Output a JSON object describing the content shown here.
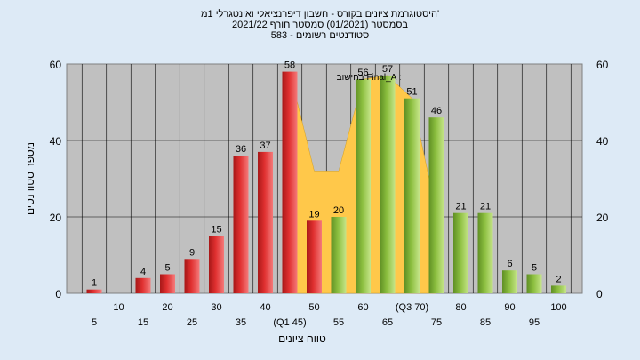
{
  "title_lines": [
    "היסטוגרמת ציונים בקורס - חשבון דיפרנציאלי ואינטגרלי 1מ'",
    "בסמסטר (01/2021) סמסטר חורף 2021/22",
    "583 - סטודנטים רשומים"
  ],
  "colors": {
    "background": "#ddeaf6",
    "plot_bg": "#c0c0c0",
    "red_bar": "#e03030",
    "green_bar": "#8cbf3f",
    "area": "#ffc84a"
  },
  "chart_data": {
    "type": "bar",
    "xlabel": "טווח ציונים",
    "ylabel": "מספר סטודנטים",
    "ylim": [
      0,
      60
    ],
    "yticks": [
      0,
      20,
      40,
      60
    ],
    "grid": true,
    "categories": [
      "5",
      "10",
      "15",
      "20",
      "25",
      "30",
      "35",
      "40",
      "(Q1 45)",
      "50",
      "55",
      "60",
      "65",
      "(Q3 70)",
      "75",
      "80",
      "85",
      "90",
      "95",
      "100"
    ],
    "values": [
      1,
      0,
      4,
      5,
      9,
      15,
      36,
      37,
      58,
      19,
      20,
      56,
      57,
      51,
      46,
      21,
      21,
      6,
      5,
      2
    ],
    "bar_colors": [
      "red",
      "red",
      "red",
      "red",
      "red",
      "red",
      "red",
      "red",
      "red",
      "red",
      "green",
      "green",
      "green",
      "green",
      "green",
      "green",
      "green",
      "green",
      "green",
      "green"
    ],
    "data_labels": [
      "1",
      "",
      "4",
      "5",
      "9",
      "15",
      "36",
      "37",
      "58",
      "19",
      "20",
      "56",
      "57",
      "51",
      "46",
      "21",
      "21",
      "6",
      "5",
      "2"
    ],
    "annotation": "בחישוב Final_A :",
    "area_series": {
      "x_start_index": 8,
      "values": [
        58,
        32,
        32,
        56,
        57,
        51,
        21
      ]
    }
  }
}
